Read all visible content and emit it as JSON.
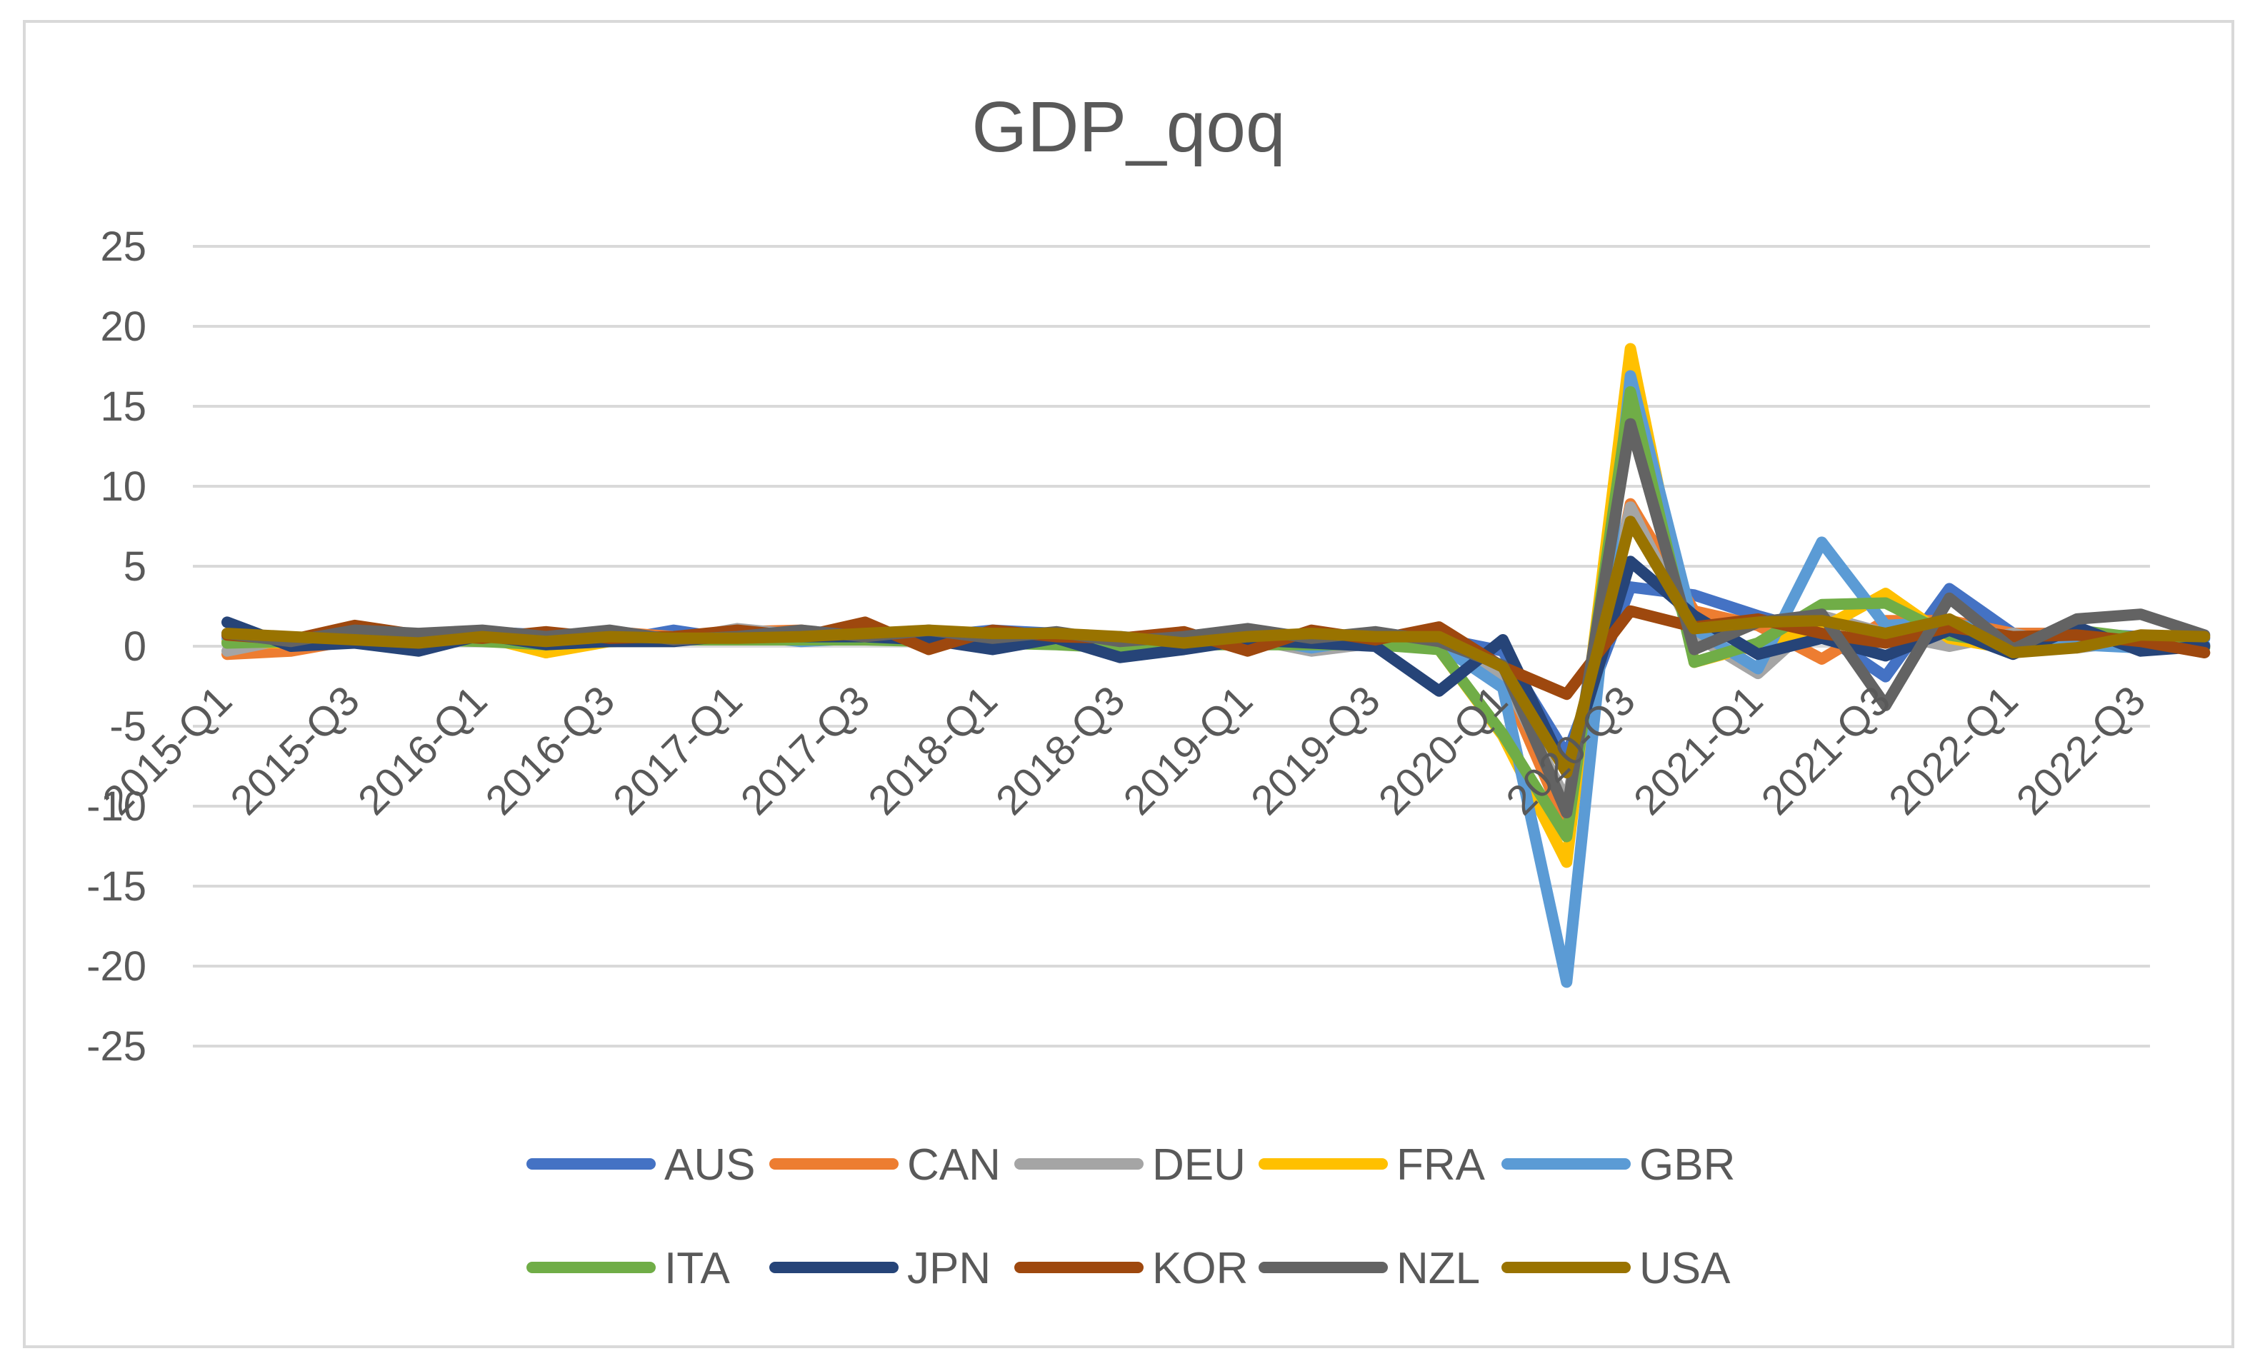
{
  "chart_data": {
    "type": "line",
    "title": "GDP_qoq",
    "xlabel": "",
    "ylabel": "",
    "ylim": [
      -25,
      25
    ],
    "ytick_step": 5,
    "grid": true,
    "legend_position": "bottom",
    "categories": [
      "2015-Q1",
      "2015-Q2",
      "2015-Q3",
      "2015-Q4",
      "2016-Q1",
      "2016-Q2",
      "2016-Q3",
      "2016-Q4",
      "2017-Q1",
      "2017-Q2",
      "2017-Q3",
      "2017-Q4",
      "2018-Q1",
      "2018-Q2",
      "2018-Q3",
      "2018-Q4",
      "2019-Q1",
      "2019-Q2",
      "2019-Q3",
      "2019-Q4",
      "2020-Q1",
      "2020-Q2",
      "2020-Q3",
      "2020-Q4",
      "2021-Q1",
      "2021-Q2",
      "2021-Q3",
      "2021-Q4",
      "2022-Q1",
      "2022-Q2",
      "2022-Q3",
      "2022-Q4"
    ],
    "x_tick_labels": [
      "2015-Q1",
      "2015-Q3",
      "2016-Q1",
      "2016-Q3",
      "2017-Q1",
      "2017-Q3",
      "2018-Q1",
      "2018-Q3",
      "2019-Q1",
      "2019-Q3",
      "2020-Q1",
      "2020-Q3",
      "2021-Q1",
      "2021-Q3",
      "2022-Q1",
      "2022-Q3"
    ],
    "series": [
      {
        "name": "AUS",
        "color": "#4472C4",
        "values": [
          0.7,
          0.4,
          0.9,
          0.6,
          0.9,
          0.7,
          0.3,
          1.0,
          0.4,
          0.8,
          0.7,
          0.6,
          1.0,
          0.8,
          0.4,
          0.3,
          0.5,
          0.6,
          0.6,
          0.5,
          -0.3,
          -6.8,
          3.7,
          3.2,
          1.9,
          0.8,
          -1.9,
          3.6,
          0.8,
          0.8,
          0.6,
          0.5
        ]
      },
      {
        "name": "CAN",
        "color": "#ED7D31",
        "values": [
          -0.5,
          -0.3,
          0.4,
          0.1,
          0.7,
          -0.4,
          0.9,
          0.6,
          0.9,
          1.0,
          0.5,
          0.4,
          0.4,
          0.7,
          0.5,
          0.2,
          0.2,
          0.8,
          0.3,
          0.1,
          -2.0,
          -11.3,
          8.9,
          2.2,
          1.3,
          -0.8,
          1.6,
          1.6,
          0.8,
          0.8,
          0.5,
          0.0
        ]
      },
      {
        "name": "DEU",
        "color": "#A5A5A5",
        "values": [
          -0.3,
          0.5,
          0.4,
          0.5,
          0.7,
          0.4,
          0.3,
          0.4,
          1.1,
          0.7,
          0.7,
          0.6,
          0.2,
          0.4,
          -0.2,
          0.2,
          0.5,
          -0.3,
          0.2,
          0.0,
          -1.8,
          -9.7,
          8.7,
          0.7,
          -1.7,
          1.9,
          0.8,
          0.0,
          0.8,
          -0.1,
          0.4,
          -0.4
        ]
      },
      {
        "name": "FRA",
        "color": "#FFC000",
        "values": [
          0.3,
          0.2,
          0.4,
          0.3,
          0.6,
          -0.4,
          0.3,
          0.6,
          0.6,
          0.7,
          0.8,
          0.8,
          0.2,
          0.2,
          0.4,
          0.6,
          0.5,
          0.3,
          0.2,
          -0.2,
          -5.6,
          -13.5,
          18.6,
          -1.0,
          0.1,
          1.1,
          3.3,
          0.5,
          -0.2,
          0.5,
          0.2,
          0.0
        ]
      },
      {
        "name": "GBR",
        "color": "#5B9BD5",
        "values": [
          0.5,
          0.5,
          0.4,
          0.7,
          0.4,
          0.3,
          0.5,
          0.6,
          0.7,
          0.3,
          0.5,
          0.4,
          0.1,
          0.5,
          0.6,
          0.3,
          0.6,
          -0.1,
          0.5,
          0.1,
          -2.6,
          -21.0,
          16.9,
          1.1,
          -1.4,
          6.5,
          1.3,
          1.5,
          0.5,
          0.1,
          -0.1,
          0.1
        ]
      },
      {
        "name": "ITA",
        "color": "#70AD47",
        "values": [
          0.2,
          0.3,
          0.3,
          0.4,
          0.3,
          0.1,
          0.3,
          0.4,
          0.4,
          0.4,
          0.4,
          0.3,
          0.2,
          0.1,
          -0.1,
          0.1,
          0.1,
          0.1,
          0.1,
          -0.2,
          -5.5,
          -11.9,
          15.9,
          -1.0,
          0.2,
          2.6,
          2.7,
          0.7,
          0.1,
          1.0,
          0.5,
          -0.1
        ]
      },
      {
        "name": "JPN",
        "color": "#264478",
        "values": [
          1.5,
          0.0,
          0.2,
          -0.3,
          0.7,
          0.1,
          0.3,
          0.3,
          0.7,
          0.6,
          0.6,
          0.4,
          -0.2,
          0.5,
          -0.7,
          -0.2,
          0.4,
          0.2,
          0.0,
          -2.8,
          0.4,
          -7.9,
          5.3,
          1.9,
          -0.5,
          0.5,
          -0.6,
          1.0,
          -0.5,
          1.2,
          -0.3,
          0.0
        ]
      },
      {
        "name": "KOR",
        "color": "#9E480E",
        "values": [
          0.7,
          0.4,
          1.3,
          0.7,
          0.5,
          0.9,
          0.5,
          0.6,
          1.0,
          0.6,
          1.5,
          -0.2,
          1.0,
          0.6,
          0.5,
          0.9,
          -0.3,
          1.0,
          0.4,
          1.2,
          -1.3,
          -3.0,
          2.2,
          1.2,
          1.7,
          0.8,
          0.2,
          1.2,
          0.6,
          0.7,
          0.3,
          -0.4
        ]
      },
      {
        "name": "NZL",
        "color": "#636363",
        "values": [
          0.8,
          0.3,
          1.0,
          0.8,
          1.0,
          0.6,
          1.0,
          0.4,
          0.6,
          1.0,
          0.6,
          1.0,
          0.5,
          0.9,
          0.3,
          0.6,
          1.1,
          0.5,
          0.9,
          0.3,
          -1.2,
          -10.4,
          13.9,
          -0.2,
          1.5,
          2.0,
          -3.7,
          3.0,
          -0.2,
          1.7,
          2.0,
          0.7
        ]
      },
      {
        "name": "USA",
        "color": "#997300",
        "values": [
          0.8,
          0.6,
          0.4,
          0.2,
          0.6,
          0.3,
          0.6,
          0.5,
          0.5,
          0.6,
          0.8,
          1.0,
          0.8,
          0.8,
          0.6,
          0.2,
          0.6,
          0.8,
          0.6,
          0.6,
          -1.3,
          -7.9,
          7.8,
          1.1,
          1.5,
          1.6,
          0.8,
          1.7,
          -0.4,
          -0.1,
          0.7,
          0.6
        ]
      }
    ]
  }
}
